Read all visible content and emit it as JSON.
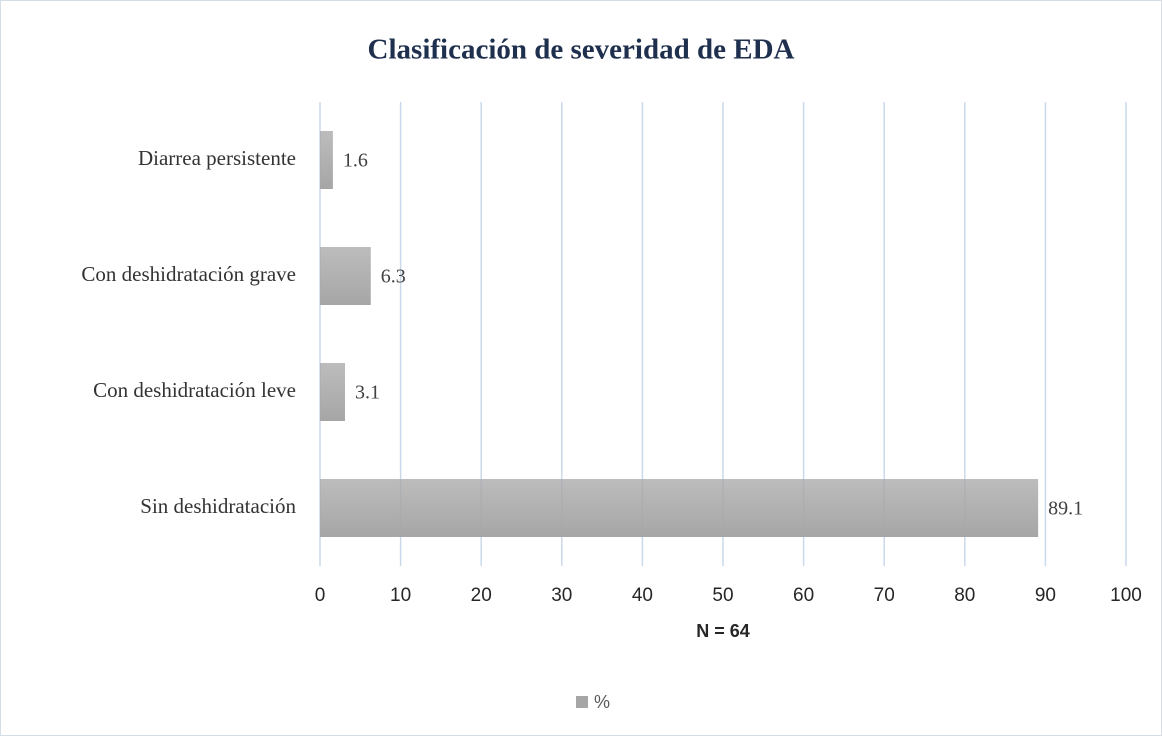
{
  "chart_data": {
    "type": "bar",
    "orientation": "horizontal",
    "title": "Clasificación de severidad de EDA",
    "categories": [
      "Diarrea persistente",
      "Con deshidratación grave",
      "Con deshidratación leve",
      "Sin deshidratación"
    ],
    "series": [
      {
        "name": "%",
        "color": "#a6a6a6",
        "values": [
          1.6,
          6.3,
          3.1,
          89.1
        ]
      }
    ],
    "xlabel": "N = 64",
    "xlim": [
      0,
      100
    ],
    "xticks": [
      0,
      10,
      20,
      30,
      40,
      50,
      60,
      70,
      80,
      90,
      100
    ],
    "grid": true,
    "legend": "bottom"
  }
}
